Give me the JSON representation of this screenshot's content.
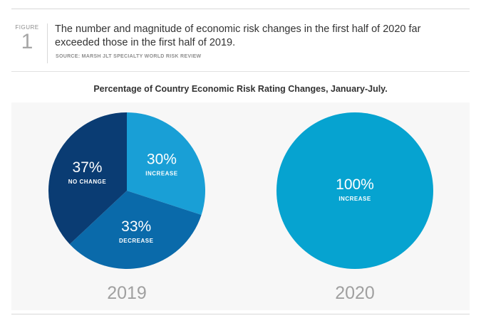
{
  "figure": {
    "label": "FIGURE",
    "number": "1",
    "headline": "The number and magnitude of economic risk changes in the first half of 2020 far exceeded those in the first half of 2019.",
    "source": "SOURCE: MARSH JLT SPECIALTY WORLD RISK REVIEW"
  },
  "chart_data": [
    {
      "type": "pie",
      "title": "Percentage of Country Economic Risk Rating Changes, January-July.",
      "label": "2019",
      "slices": [
        {
          "name": "INCREASE",
          "value": 30,
          "label": "30%",
          "color": "#199fd6"
        },
        {
          "name": "DECREASE",
          "value": 33,
          "label": "33%",
          "color": "#0a6aaa"
        },
        {
          "name": "NO CHANGE",
          "value": 37,
          "label": "37%",
          "color": "#0a3c73"
        }
      ]
    },
    {
      "type": "pie",
      "label": "2020",
      "slices": [
        {
          "name": "INCREASE",
          "value": 100,
          "label": "100%",
          "color": "#06a3d0"
        }
      ]
    }
  ],
  "colors": {
    "year_label": "#a0a0a0",
    "panel": "#f7f7f7"
  }
}
